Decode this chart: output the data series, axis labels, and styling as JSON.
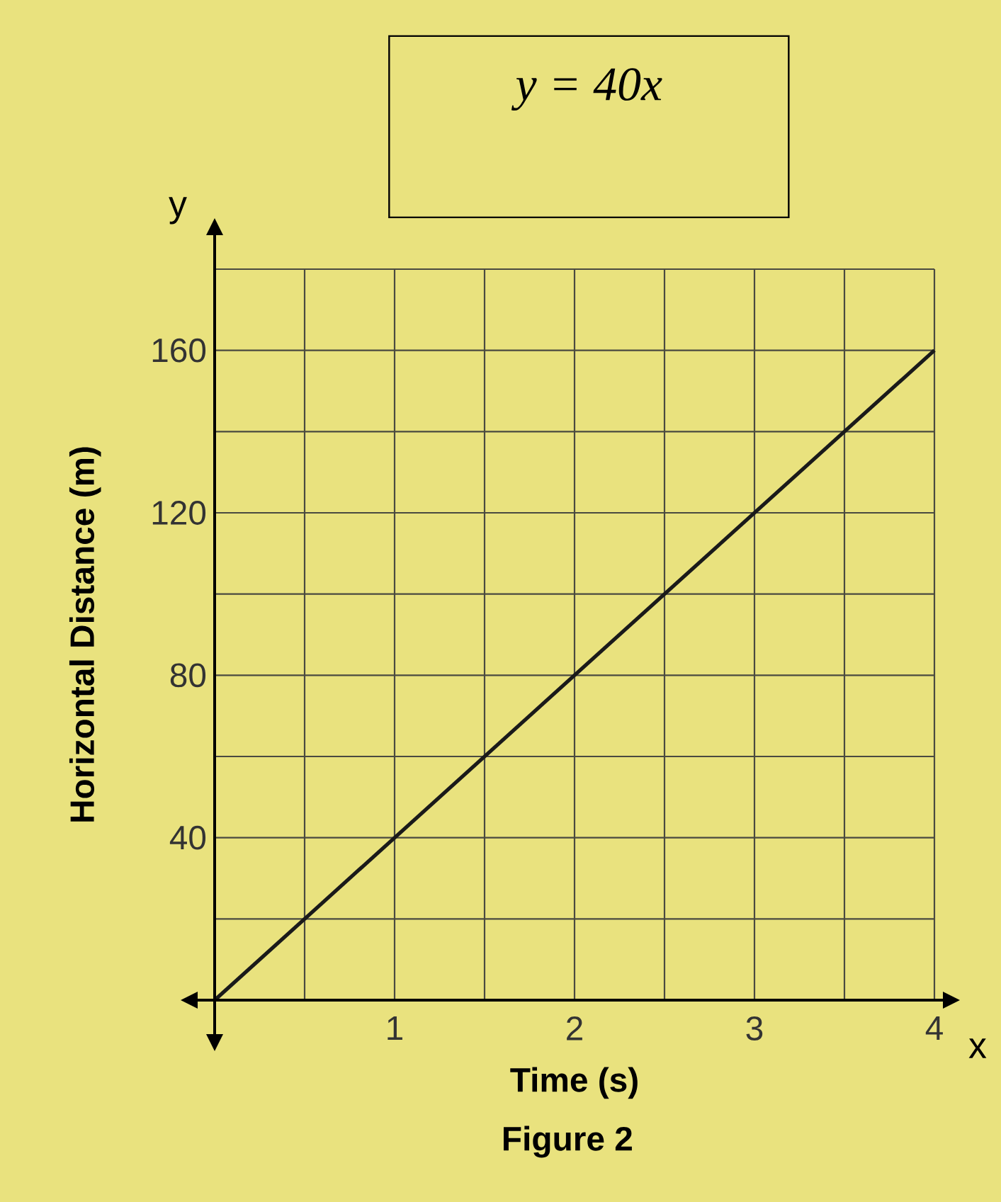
{
  "chart_data": {
    "type": "line",
    "title": "y = 40x",
    "xlabel": "Time (s)",
    "ylabel": "Horizontal Distance (m)",
    "annotations": [
      "Figure 2",
      "y",
      "x"
    ],
    "xlim": [
      0,
      4
    ],
    "ylim": [
      0,
      180
    ],
    "xticks": [
      {
        "value": 0.5,
        "label": null
      },
      1,
      {
        "value": 1.5,
        "label": null
      },
      2,
      {
        "value": 2.5,
        "label": null
      },
      3,
      {
        "value": 3.5,
        "label": null
      },
      4
    ],
    "yticks": [
      {
        "value": 20,
        "label": null
      },
      40,
      {
        "value": 60,
        "label": null
      },
      80,
      {
        "value": 100,
        "label": null
      },
      120,
      {
        "value": 140,
        "label": null
      },
      160,
      {
        "value": 180,
        "label": null
      }
    ],
    "grid": true,
    "series": [
      {
        "type": "line",
        "color": "#1a1a1a",
        "x": [
          0,
          4
        ],
        "values": [
          0,
          160
        ]
      }
    ]
  }
}
